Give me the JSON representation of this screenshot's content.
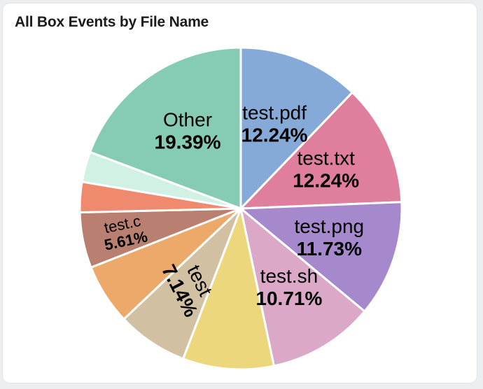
{
  "widget": {
    "title": "All Box Events by File Name"
  },
  "chart_data": {
    "type": "pie",
    "title": "All Box Events by File Name",
    "legend": "none",
    "slices": [
      {
        "label": "test.pdf",
        "value": 12.24,
        "pct_text": "12.24%",
        "color": "#86aad8",
        "show_label": true
      },
      {
        "label": "test.txt",
        "value": 12.24,
        "pct_text": "12.24%",
        "color": "#e07f9d",
        "show_label": true
      },
      {
        "label": "test.png",
        "value": 11.73,
        "pct_text": "11.73%",
        "color": "#a689cc",
        "show_label": true
      },
      {
        "label": "test.sh",
        "value": 10.71,
        "pct_text": "10.71%",
        "color": "#dba8c8",
        "show_label": true
      },
      {
        "label": "",
        "value": 9.18,
        "pct_text": "",
        "color": "#ecd77c",
        "show_label": false
      },
      {
        "label": "test",
        "value": 7.14,
        "pct_text": "7.14%",
        "color": "#d1c0a2",
        "show_label": true
      },
      {
        "label": "",
        "value": 6.12,
        "pct_text": "",
        "color": "#eca96a",
        "show_label": false
      },
      {
        "label": "test.c",
        "value": 5.61,
        "pct_text": "5.61%",
        "color": "#b97f70",
        "show_label": true
      },
      {
        "label": "",
        "value": 3.06,
        "pct_text": "",
        "color": "#ef8a6e",
        "show_label": false
      },
      {
        "label": "",
        "value": 3.06,
        "pct_text": "",
        "color": "#d2f1e5",
        "show_label": false
      },
      {
        "label": "Other",
        "value": 19.39,
        "pct_text": "19.39%",
        "color": "#86cbb3",
        "show_label": true
      }
    ]
  }
}
